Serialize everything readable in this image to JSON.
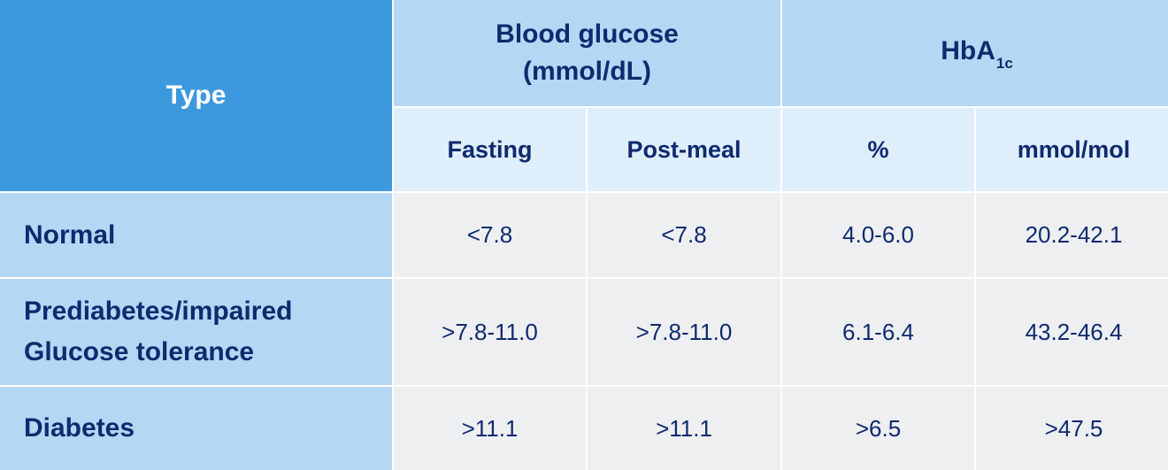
{
  "header": {
    "type_label": "Type",
    "blood_glucose_label": "Blood glucose\n(mmol/dL)",
    "hba1c_label": "HbA",
    "hba1c_subscript": "1c",
    "fasting_label": "Fasting",
    "post_meal_label": "Post-meal",
    "percent_label": "%",
    "mmol_mol_label": "mmol/mol"
  },
  "rows": [
    {
      "type": "Normal",
      "fasting": "<7.8",
      "post_meal": "<7.8",
      "hba1c_percent": "4.0-6.0",
      "hba1c_mmol": "20.2-42.1"
    },
    {
      "type": "Prediabetes/impaired\nGlucose tolerance",
      "fasting": ">7.8-11.0",
      "post_meal": ">7.8-11.0",
      "hba1c_percent": "6.1-6.4",
      "hba1c_mmol": "43.2-46.4"
    },
    {
      "type": "Diabetes",
      "fasting": ">11.1",
      "post_meal": ">11.1",
      "hba1c_percent": ">6.5",
      "hba1c_mmol": ">47.5"
    }
  ],
  "colors": {
    "corner_header": "#3d99de",
    "group_header": "#b4d7f4",
    "sub_header": "#dfeefb",
    "row_header": "#b4d7f4",
    "value_cell": "#eeeff1",
    "text": "#0f2a6e"
  }
}
